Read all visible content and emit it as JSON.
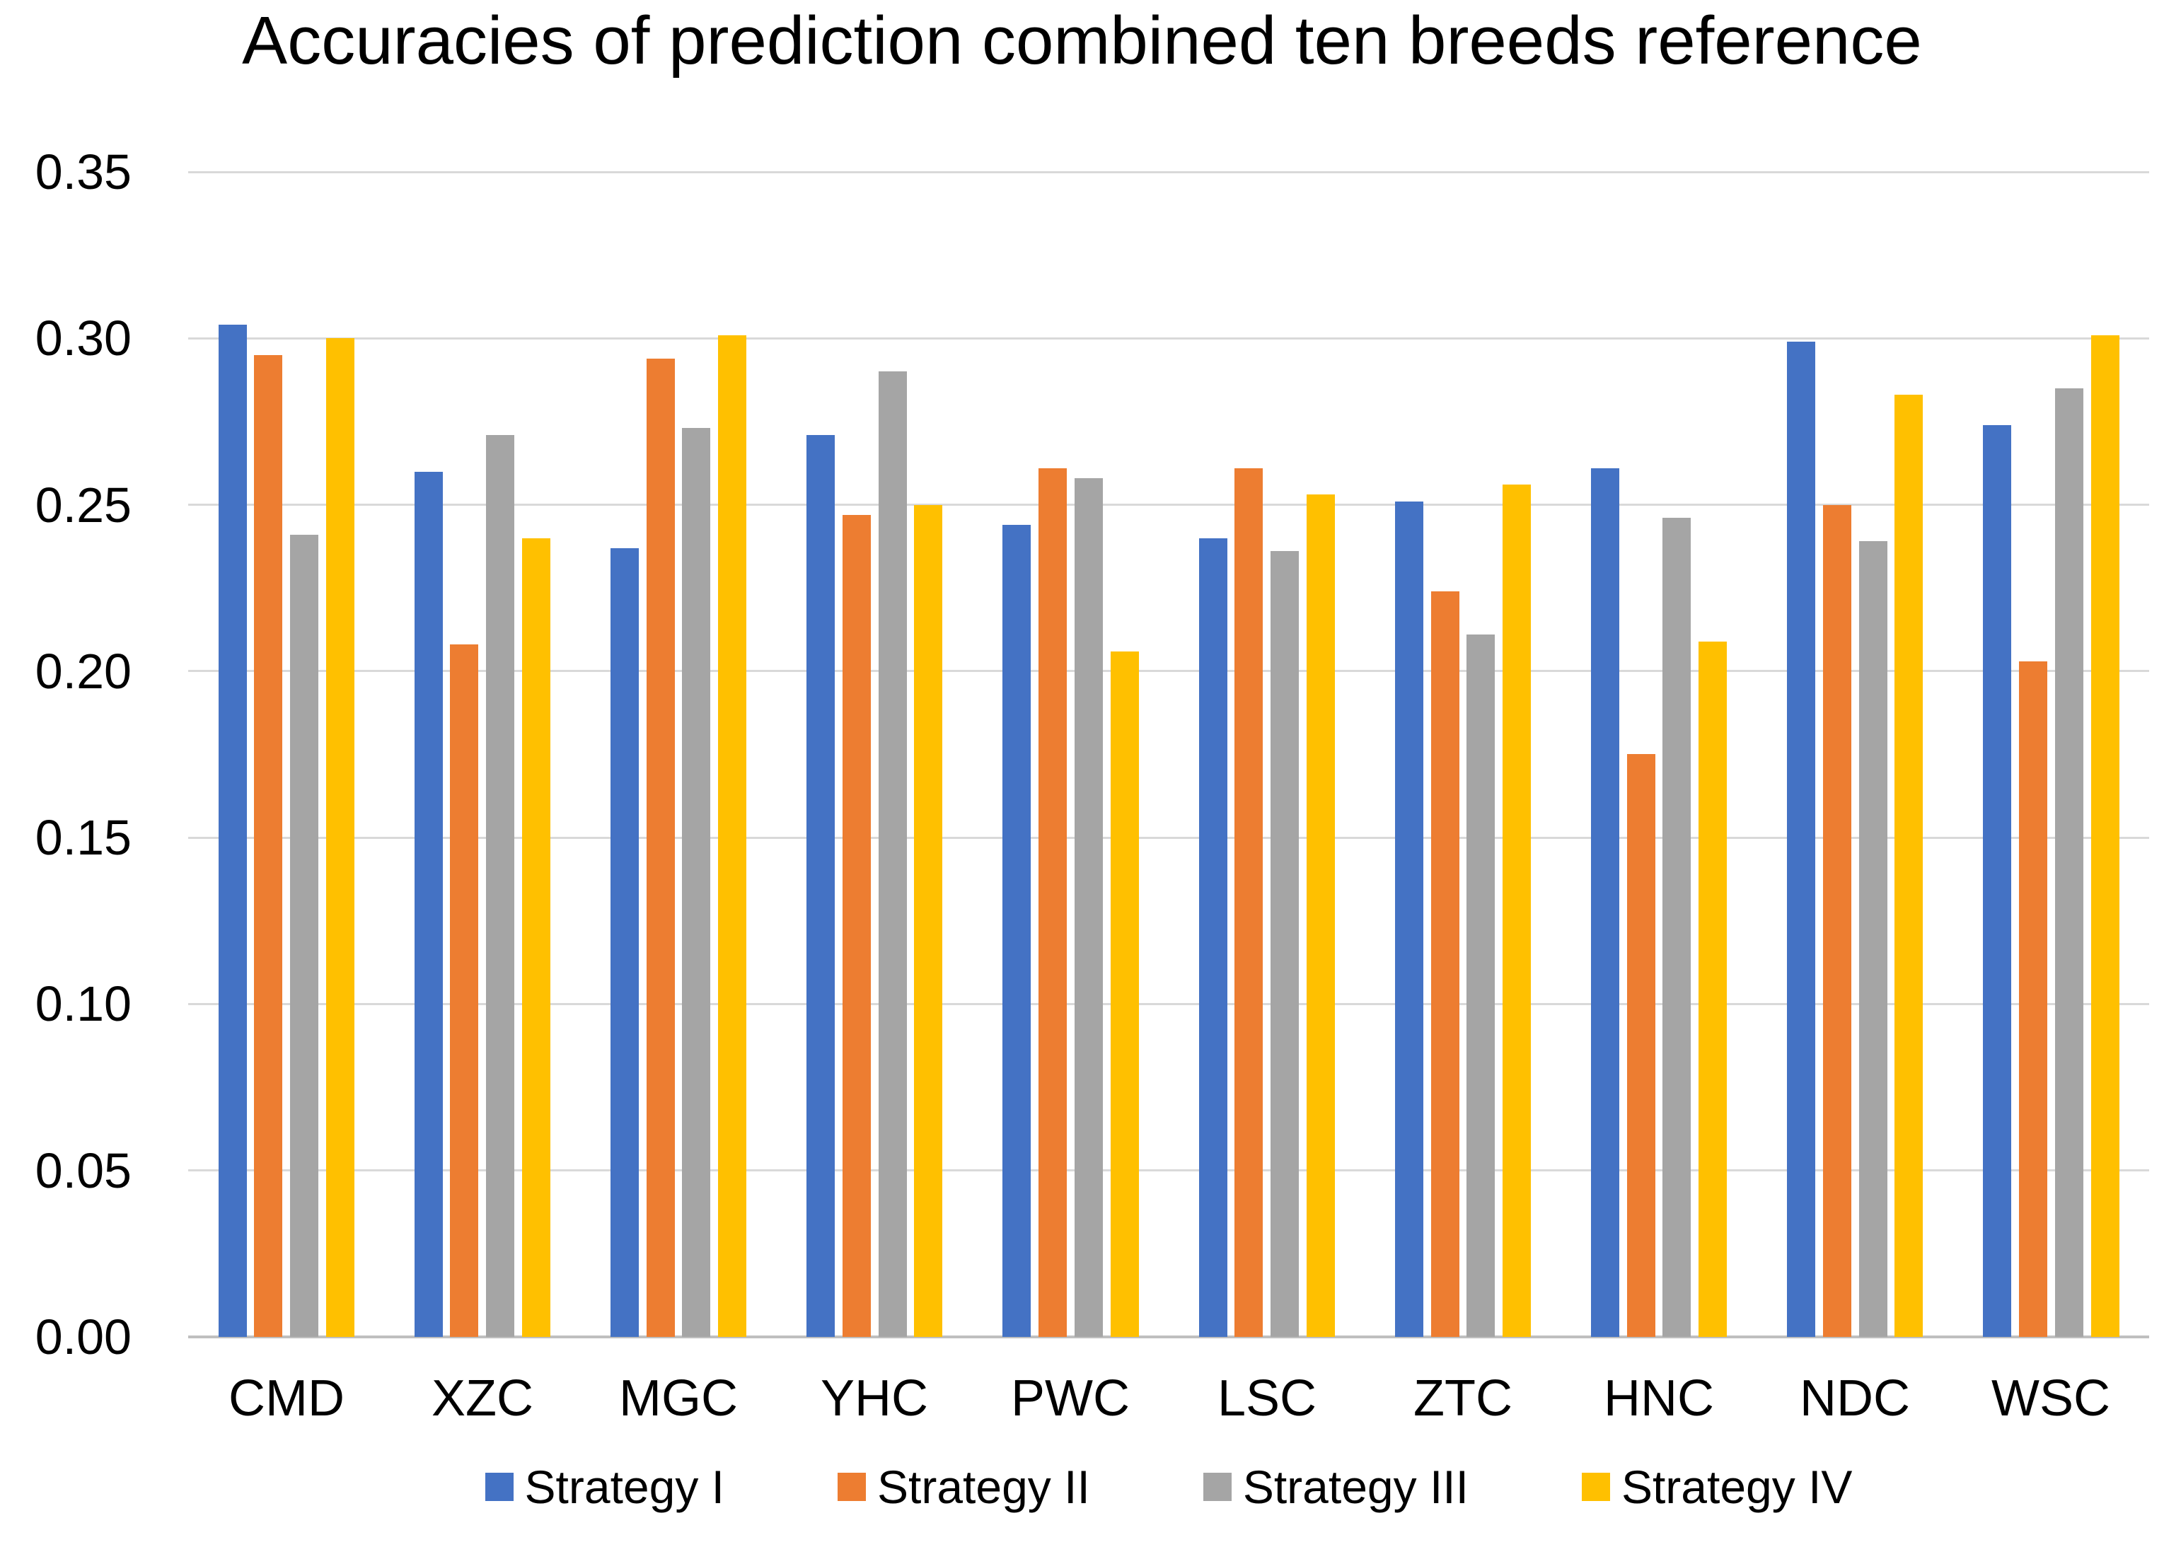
{
  "page": {
    "background": "#FFFFFF",
    "text_color": "#000000"
  },
  "chart_data": {
    "type": "bar",
    "title": "Accuracies of prediction combined ten breeds reference",
    "xlabel": "",
    "ylabel": "",
    "categories": [
      "CMD",
      "XZC",
      "MGC",
      "YHC",
      "PWC",
      "LSC",
      "ZTC",
      "HNC",
      "NDC",
      "WSC"
    ],
    "series": [
      {
        "name": "Strategy I",
        "color": "#4472C4",
        "values": [
          0.304,
          0.26,
          0.237,
          0.271,
          0.244,
          0.24,
          0.251,
          0.261,
          0.299,
          0.274
        ]
      },
      {
        "name": "Strategy II",
        "color": "#ED7D31",
        "values": [
          0.295,
          0.208,
          0.294,
          0.247,
          0.261,
          0.261,
          0.224,
          0.175,
          0.25,
          0.203
        ]
      },
      {
        "name": "Strategy III",
        "color": "#A5A5A5",
        "values": [
          0.241,
          0.271,
          0.273,
          0.29,
          0.258,
          0.236,
          0.211,
          0.246,
          0.239,
          0.285
        ]
      },
      {
        "name": "Strategy IV",
        "color": "#FFC000",
        "values": [
          0.3,
          0.24,
          0.301,
          0.25,
          0.206,
          0.253,
          0.256,
          0.209,
          0.283,
          0.301
        ]
      }
    ],
    "y_ticks": [
      "0.00",
      "0.05",
      "0.10",
      "0.15",
      "0.20",
      "0.25",
      "0.30",
      "0.35"
    ],
    "ylim": [
      0,
      0.35
    ],
    "grid": true,
    "gridline_color": "#D9D9D9",
    "axis_line_color": "#BFBFBF",
    "legend_position": "bottom"
  }
}
